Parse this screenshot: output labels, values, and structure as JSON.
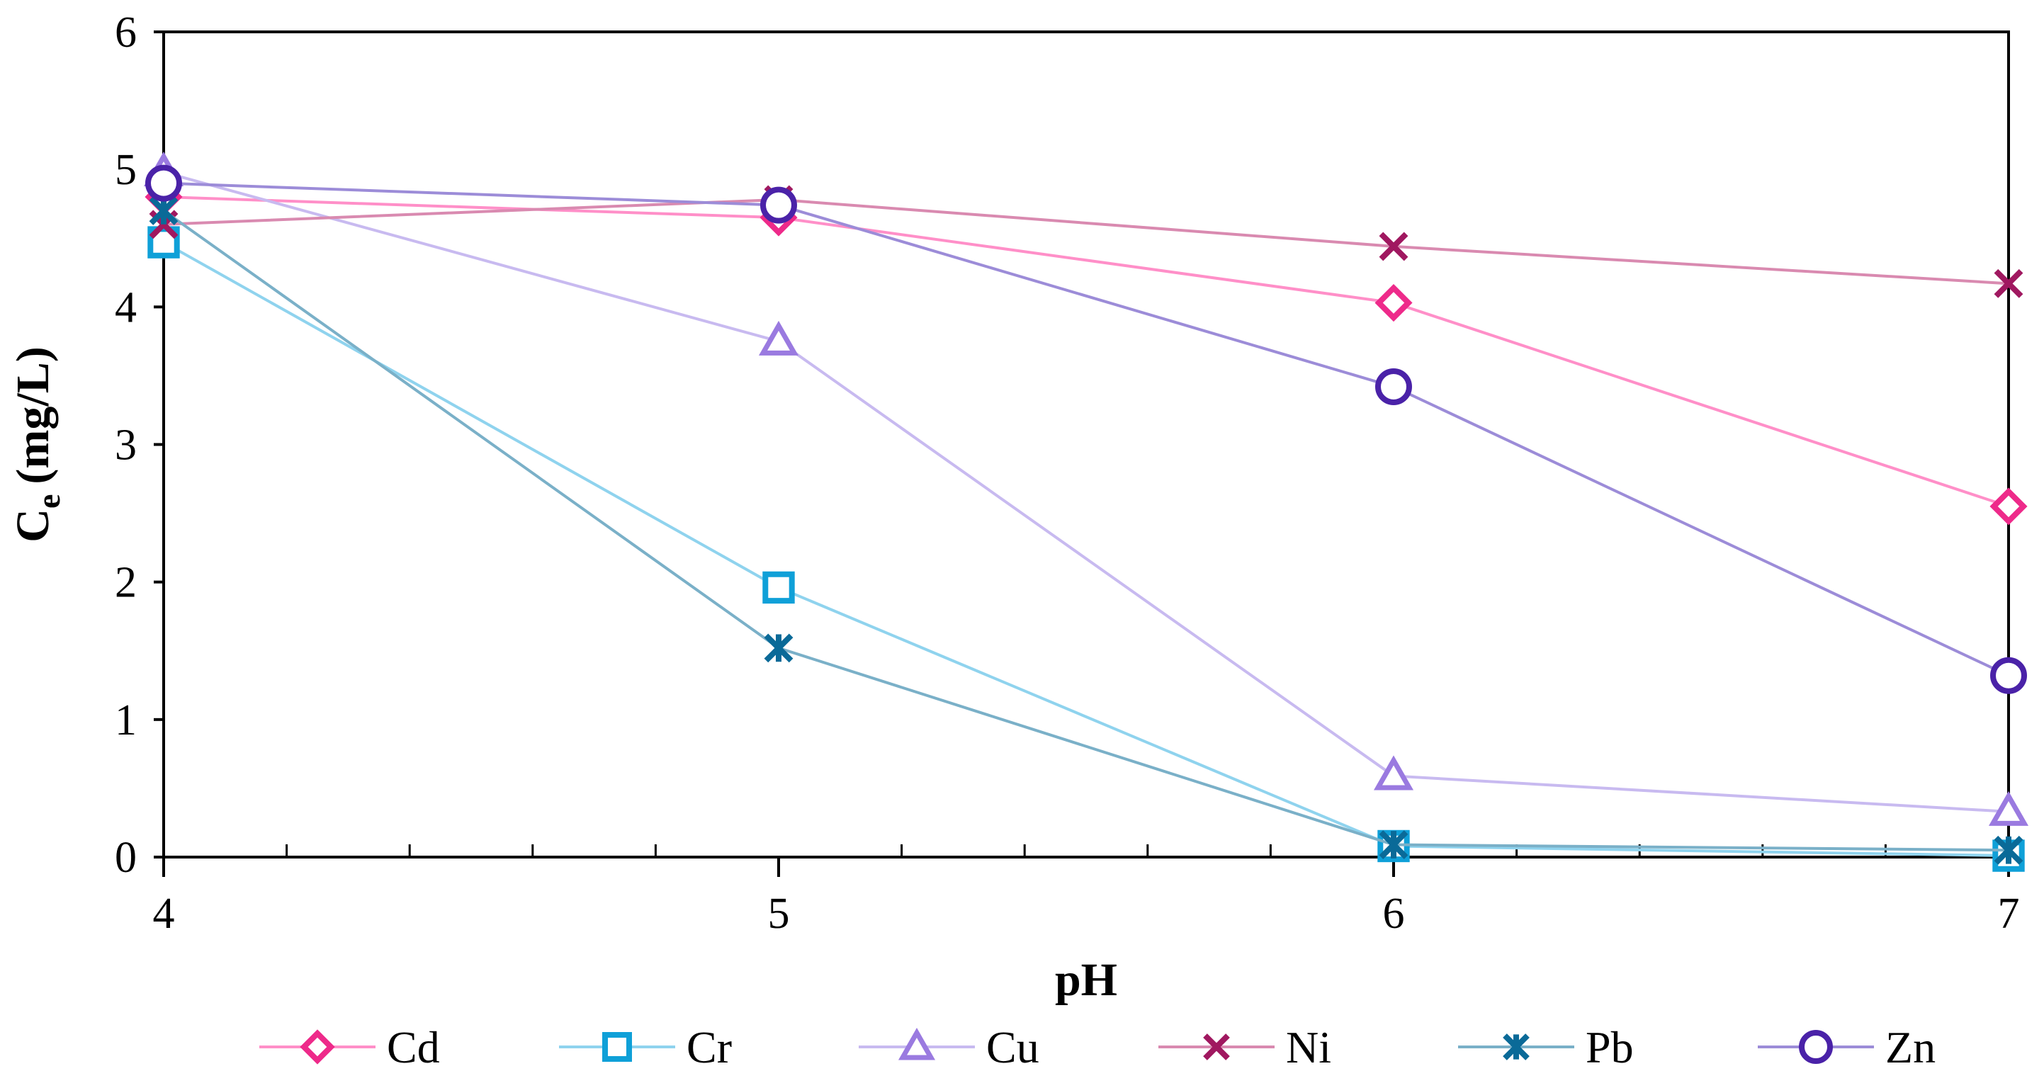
{
  "chart_data": {
    "type": "line",
    "title": "",
    "xlabel": "pH",
    "ylabel": "C",
    "ylabel_sub": "e",
    "ylabel_unit": "(mg/L)",
    "x": [
      4,
      5,
      6,
      7
    ],
    "x_ticks": [
      "4",
      "5",
      "6",
      "7"
    ],
    "y_ticks": [
      "0",
      "1",
      "2",
      "3",
      "4",
      "5",
      "6"
    ],
    "xlim": [
      4,
      7
    ],
    "ylim": [
      0,
      6
    ],
    "minor_x_ticks_per_unit": 5,
    "grid": false,
    "legend_position": "bottom",
    "series": [
      {
        "name": "Cd",
        "values": [
          4.8,
          4.65,
          4.03,
          2.55
        ],
        "line_color": "#ff8fc8",
        "marker_color": "#ee2a8a",
        "marker": "diamond"
      },
      {
        "name": "Cr",
        "values": [
          4.47,
          1.96,
          0.08,
          0.01
        ],
        "line_color": "#8fd3ee",
        "marker_color": "#0fa0d8",
        "marker": "square"
      },
      {
        "name": "Cu",
        "values": [
          4.98,
          3.75,
          0.59,
          0.33
        ],
        "line_color": "#c8baf0",
        "marker_color": "#9a7ae0",
        "marker": "triangle"
      },
      {
        "name": "Ni",
        "values": [
          4.6,
          4.78,
          4.44,
          4.17
        ],
        "line_color": "#d98ab0",
        "marker_color": "#a01860",
        "marker": "x"
      },
      {
        "name": "Pb",
        "values": [
          4.7,
          1.52,
          0.09,
          0.05
        ],
        "line_color": "#7ab0c8",
        "marker_color": "#0a6a98",
        "marker": "asterisk"
      },
      {
        "name": "Zn",
        "values": [
          4.9,
          4.74,
          3.42,
          1.32
        ],
        "line_color": "#9c8cd8",
        "marker_color": "#4a22a8",
        "marker": "circle"
      }
    ]
  }
}
